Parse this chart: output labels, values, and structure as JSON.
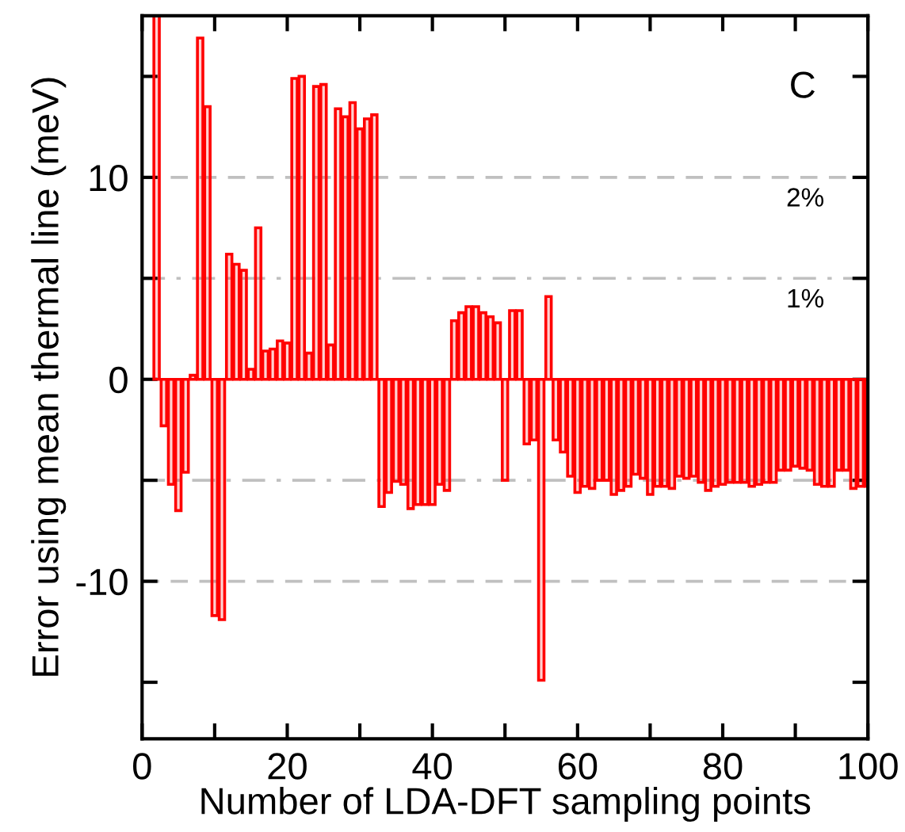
{
  "chart_data": {
    "type": "bar",
    "xlabel": "Number of LDA-DFT sampling points",
    "ylabel": "Error using mean thermal line (meV)",
    "annotations": [
      "C",
      "2%",
      "1%"
    ],
    "x": [
      2,
      3,
      4,
      5,
      6,
      7,
      8,
      9,
      10,
      11,
      12,
      13,
      14,
      15,
      16,
      17,
      18,
      19,
      20,
      21,
      22,
      23,
      24,
      25,
      26,
      27,
      28,
      29,
      30,
      31,
      32,
      33,
      34,
      35,
      36,
      37,
      38,
      39,
      40,
      41,
      42,
      43,
      44,
      45,
      46,
      47,
      48,
      49,
      50,
      51,
      52,
      53,
      54,
      55,
      56,
      57,
      58,
      59,
      60,
      61,
      62,
      63,
      64,
      65,
      66,
      67,
      68,
      69,
      70,
      71,
      72,
      73,
      74,
      75,
      76,
      77,
      78,
      79,
      80,
      81,
      82,
      83,
      84,
      85,
      86,
      87,
      88,
      89,
      90,
      91,
      92,
      93,
      94,
      95,
      96,
      97,
      98,
      99,
      100
    ],
    "series": [
      {
        "color": "#ff0000",
        "values": [
          18,
          -2.3,
          -5.2,
          -6.5,
          -4.6,
          0.2,
          16.9,
          13.5,
          -11.7,
          -11.9,
          6.2,
          5.7,
          5.4,
          0.5,
          7.5,
          1.4,
          1.5,
          1.9,
          1.8,
          14.9,
          15.0,
          1.3,
          14.5,
          14.6,
          1.7,
          13.4,
          13.0,
          13.7,
          12.4,
          12.9,
          13.1,
          -6.3,
          -5.6,
          -5.05,
          -5.2,
          -6.4,
          -6.2,
          -6.2,
          -6.2,
          -5.2,
          -5.5,
          2.9,
          3.3,
          3.6,
          3.6,
          3.3,
          3.1,
          2.8,
          -5.0,
          3.4,
          3.4,
          -3.2,
          -3.0,
          -14.9,
          4.1,
          -3.0,
          -3.6,
          -4.8,
          -5.6,
          -5.3,
          -5.4,
          -5.0,
          -5.0,
          -5.7,
          -5.5,
          -5.3,
          -4.7,
          -4.9,
          -5.7,
          -5.3,
          -5.3,
          -5.4,
          -4.8,
          -4.9,
          -4.8,
          -5.1,
          -5.5,
          -5.3,
          -5.2,
          -5.1,
          -5.1,
          -5.1,
          -5.3,
          -5.2,
          -5.1,
          -5.1,
          -4.5,
          -4.5,
          -4.3,
          -4.4,
          -4.5,
          -5.2,
          -5.3,
          -5.3,
          -4.5,
          -4.5,
          -5.4,
          -5.3,
          -5.3
        ]
      }
    ],
    "xlim": [
      0,
      100
    ],
    "xticks": [
      0,
      {
        "value": 10,
        "label": null
      },
      20,
      {
        "value": 30,
        "label": null
      },
      40,
      {
        "value": 50,
        "label": null
      },
      60,
      {
        "value": 70,
        "label": null
      },
      80,
      {
        "value": 90,
        "label": null
      },
      100
    ],
    "ylim": [
      -17.8,
      18
    ],
    "yticks": [
      {
        "value": -15,
        "label": null
      },
      -10,
      {
        "value": -5,
        "label": null
      },
      0,
      {
        "value": 5,
        "label": null
      },
      10,
      {
        "value": 15,
        "label": null
      }
    ],
    "ref_lines": [
      {
        "axis": "y",
        "value": 10,
        "color": "#c0c0c0",
        "line_style": "dashed"
      },
      {
        "axis": "y",
        "value": 5,
        "color": "#c0c0c0",
        "line_style": "dashdot"
      },
      {
        "axis": "y",
        "value": -5,
        "color": "#c0c0c0",
        "line_style": "dashdot"
      },
      {
        "axis": "y",
        "value": -10,
        "color": "#c0c0c0",
        "line_style": "dashed"
      }
    ],
    "grid": false,
    "legend": false
  }
}
